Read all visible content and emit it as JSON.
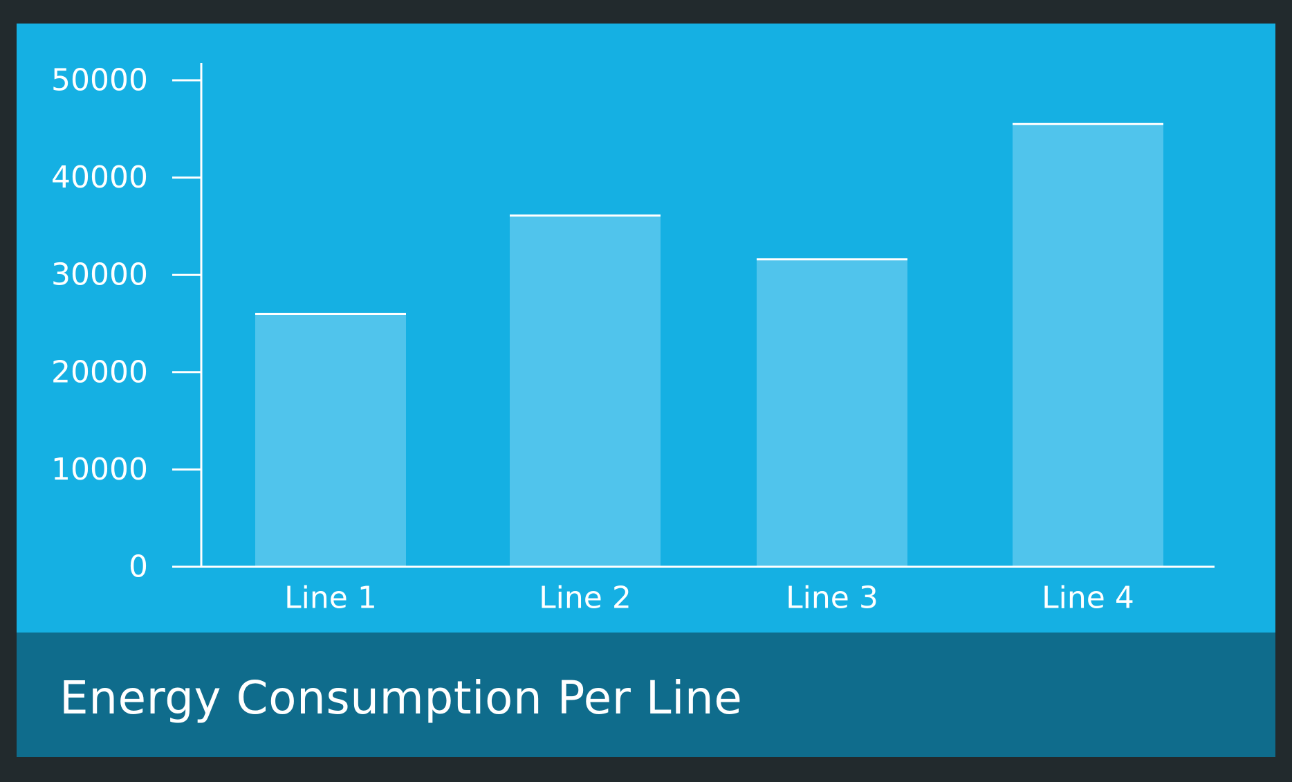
{
  "colors": {
    "frame": "#222a2d",
    "plot_background": "#15b0e3",
    "footer_background": "#0f6c8c",
    "bar_fill": "#50c4ec",
    "axis": "#ffffff",
    "text": "#ffffff"
  },
  "chart_data": {
    "type": "bar",
    "title": "Energy Consumption Per Line",
    "xlabel": "",
    "ylabel": "",
    "categories": [
      "Line 1",
      "Line 2",
      "Line 3",
      "Line 4"
    ],
    "values": [
      26000,
      36100,
      31600,
      45500
    ],
    "ylim": [
      0,
      50000
    ],
    "yticks": [
      0,
      10000,
      20000,
      30000,
      40000,
      50000
    ],
    "grid": false,
    "legend": "none"
  }
}
